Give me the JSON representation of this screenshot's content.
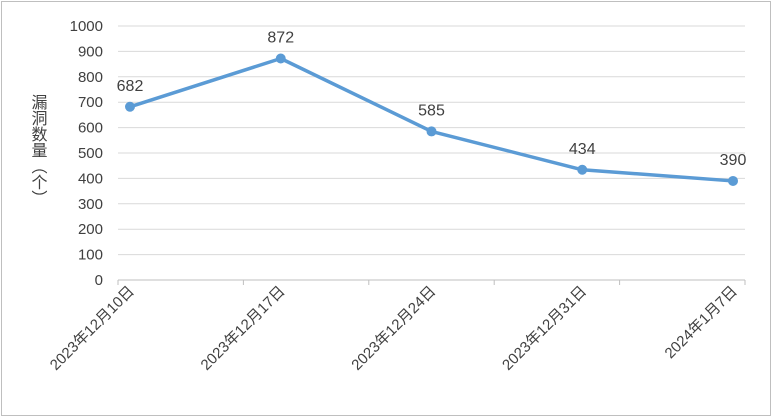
{
  "chart_data": {
    "type": "line",
    "categories": [
      "2023年12月10日",
      "2023年12月17日",
      "2023年12月24日",
      "2023年12月31日",
      "2024年1月7日"
    ],
    "series": [
      {
        "values": [
          682,
          872,
          585,
          434,
          390
        ],
        "color": "#5b9bd5"
      }
    ],
    "ylabel": "漏洞数量（个）",
    "ylim": [
      0,
      1000
    ],
    "yticks": [
      0,
      100,
      200,
      300,
      400,
      500,
      600,
      700,
      800,
      900,
      1000
    ],
    "grid": "horizontal",
    "legend": "none"
  }
}
